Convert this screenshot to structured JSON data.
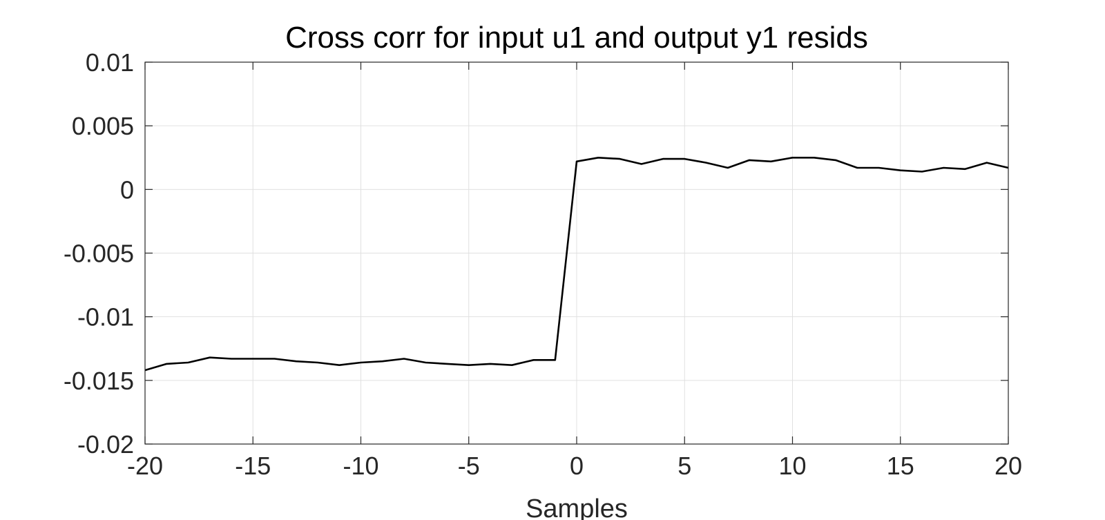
{
  "chart_data": {
    "type": "line",
    "title": "Cross corr for input u1 and output y1 resids",
    "xlabel": "Samples",
    "ylabel": "",
    "xlim": [
      -20,
      20
    ],
    "ylim": [
      -0.02,
      0.01
    ],
    "grid": true,
    "x_ticks": [
      -20,
      -15,
      -10,
      -5,
      0,
      5,
      10,
      15,
      20
    ],
    "x_tick_labels": [
      "-20",
      "-15",
      "-10",
      "-5",
      "0",
      "5",
      "10",
      "15",
      "20"
    ],
    "y_ticks": [
      0.01,
      0.005,
      0,
      -0.005,
      -0.01,
      -0.015,
      -0.02
    ],
    "y_tick_labels": [
      "0.01",
      "0.005",
      "0",
      "-0.005",
      "-0.01",
      "-0.015",
      "-0.02"
    ],
    "series": [
      {
        "color": "#000000",
        "x": [
          -20,
          -19,
          -18,
          -17,
          -16,
          -15,
          -14,
          -13,
          -12,
          -11,
          -10,
          -9,
          -8,
          -7,
          -6,
          -5,
          -4,
          -3,
          -2,
          -1,
          0,
          1,
          2,
          3,
          4,
          5,
          6,
          7,
          8,
          9,
          10,
          11,
          12,
          13,
          14,
          15,
          16,
          17,
          18,
          19,
          20
        ],
        "y": [
          -0.0142,
          -0.0137,
          -0.0136,
          -0.0132,
          -0.0133,
          -0.0133,
          -0.0133,
          -0.0135,
          -0.0136,
          -0.0138,
          -0.0136,
          -0.0135,
          -0.0133,
          -0.0136,
          -0.0137,
          -0.0138,
          -0.0137,
          -0.0138,
          -0.0134,
          -0.0134,
          0.0022,
          0.0025,
          0.0024,
          0.002,
          0.0024,
          0.0024,
          0.0021,
          0.0017,
          0.0023,
          0.0022,
          0.0025,
          0.0025,
          0.0023,
          0.0017,
          0.0017,
          0.0015,
          0.0014,
          0.0017,
          0.0016,
          0.0021,
          0.0017
        ]
      }
    ]
  }
}
